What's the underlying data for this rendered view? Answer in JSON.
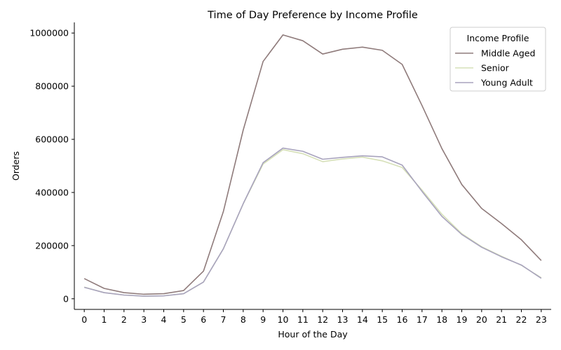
{
  "chart_data": {
    "type": "line",
    "title": "Time of Day Preference by Income Profile",
    "xlabel": "Hour of the Day",
    "ylabel": "Orders",
    "categories": [
      "0",
      "1",
      "2",
      "3",
      "4",
      "5",
      "6",
      "7",
      "8",
      "9",
      "10",
      "11",
      "12",
      "13",
      "14",
      "15",
      "16",
      "17",
      "18",
      "19",
      "20",
      "21",
      "22",
      "23"
    ],
    "ylim": [
      -40000,
      1040000
    ],
    "yticks": [
      0,
      200000,
      400000,
      600000,
      800000,
      1000000
    ],
    "ytick_labels": [
      "0",
      "200000",
      "400000",
      "600000",
      "800000",
      "1000000"
    ],
    "grid": false,
    "legend": {
      "title": "Income Profile",
      "placement": "top-right"
    },
    "series": [
      {
        "name": "Middle Aged",
        "color": "#8f7b7b",
        "values": [
          76000,
          39000,
          23000,
          17000,
          19000,
          31000,
          104000,
          328000,
          635000,
          893000,
          993000,
          971000,
          921000,
          939000,
          947000,
          935000,
          882000,
          727000,
          565000,
          430000,
          340000,
          283000,
          222000,
          144000
        ]
      },
      {
        "name": "Senior",
        "color": "#d6e0b8",
        "values": [
          44000,
          23000,
          14000,
          10000,
          11000,
          19000,
          63000,
          188000,
          357000,
          507000,
          561000,
          546000,
          516000,
          526000,
          533000,
          519000,
          494000,
          409000,
          318000,
          245000,
          196000,
          160000,
          126000,
          79000
        ]
      },
      {
        "name": "Young Adult",
        "color": "#a8a3bd",
        "values": [
          43000,
          23000,
          14000,
          10000,
          11000,
          19000,
          63000,
          188000,
          358000,
          512000,
          567000,
          555000,
          525000,
          532000,
          538000,
          534000,
          503000,
          404000,
          310000,
          242000,
          194000,
          158000,
          127000,
          77000
        ]
      }
    ]
  }
}
